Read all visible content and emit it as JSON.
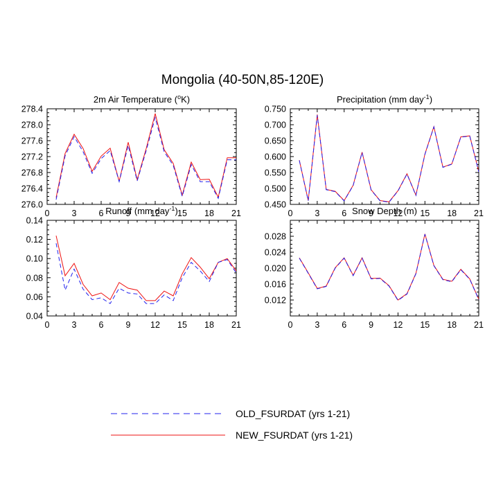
{
  "figure_title": "Mongolia (40-50N,85-120E)",
  "colors": {
    "old": "#2020ee",
    "new": "#ee1010",
    "axis": "#000000"
  },
  "legend": {
    "old_label": "OLD_FSURDAT (yrs 1-21)",
    "new_label": "NEW_FSURDAT (yrs 1-21)"
  },
  "chart_data": [
    {
      "type": "line",
      "title_main": "2m Air Temperature (",
      "title_sup": "o",
      "title_end": "K)",
      "x": [
        1,
        2,
        3,
        4,
        5,
        6,
        7,
        8,
        9,
        10,
        11,
        12,
        13,
        14,
        15,
        16,
        17,
        18,
        19,
        20,
        21
      ],
      "xlim": [
        0,
        21
      ],
      "xticks": [
        "0",
        "3",
        "6",
        "9",
        "12",
        "15",
        "18",
        "21"
      ],
      "ylim": [
        276.0,
        278.4
      ],
      "yticks": [
        "276.0",
        "276.4",
        "276.8",
        "277.2",
        "277.6",
        "278.0",
        "278.4"
      ],
      "series": [
        {
          "name": "OLD_FSURDAT (yrs 1-21)",
          "style": "dashed",
          "values": [
            276.12,
            277.22,
            277.7,
            277.32,
            276.78,
            277.15,
            277.35,
            276.57,
            277.48,
            276.59,
            277.35,
            278.18,
            277.32,
            276.98,
            276.2,
            277.0,
            276.57,
            276.57,
            276.15,
            277.12,
            277.12
          ]
        },
        {
          "name": "NEW_FSURDAT (yrs 1-21)",
          "style": "solid",
          "values": [
            276.17,
            277.28,
            277.76,
            277.4,
            276.83,
            277.21,
            277.41,
            276.58,
            277.56,
            276.62,
            277.4,
            278.28,
            277.37,
            277.03,
            276.23,
            277.06,
            276.62,
            276.63,
            276.18,
            277.17,
            277.17
          ]
        }
      ]
    },
    {
      "type": "line",
      "title_main": "Precipitation (mm day",
      "title_sup": "-1",
      "title_end": ")",
      "x": [
        1,
        2,
        3,
        4,
        5,
        6,
        7,
        8,
        9,
        10,
        11,
        12,
        13,
        14,
        15,
        16,
        17,
        18,
        19,
        20,
        21
      ],
      "xlim": [
        0,
        21
      ],
      "xticks": [
        "0",
        "3",
        "6",
        "9",
        "12",
        "15",
        "18",
        "21"
      ],
      "ylim": [
        0.45,
        0.75
      ],
      "yticks": [
        "0.450",
        "0.500",
        "0.550",
        "0.600",
        "0.650",
        "0.700",
        "0.750"
      ],
      "series": [
        {
          "name": "OLD_FSURDAT (yrs 1-21)",
          "style": "dashed",
          "values": [
            0.588,
            0.461,
            0.73,
            0.496,
            0.49,
            0.461,
            0.509,
            0.613,
            0.495,
            0.461,
            0.457,
            0.492,
            0.545,
            0.478,
            0.607,
            0.693,
            0.566,
            0.576,
            0.661,
            0.664,
            0.552
          ]
        },
        {
          "name": "NEW_FSURDAT (yrs 1-21)",
          "style": "solid",
          "values": [
            0.589,
            0.462,
            0.732,
            0.497,
            0.491,
            0.462,
            0.51,
            0.614,
            0.496,
            0.462,
            0.458,
            0.493,
            0.546,
            0.479,
            0.608,
            0.694,
            0.567,
            0.577,
            0.662,
            0.665,
            0.553
          ]
        }
      ]
    },
    {
      "type": "line",
      "title_main": "Runoff (mm day",
      "title_sup": "-1",
      "title_end": ")",
      "x": [
        1,
        2,
        3,
        4,
        5,
        6,
        7,
        8,
        9,
        10,
        11,
        12,
        13,
        14,
        15,
        16,
        17,
        18,
        19,
        20,
        21
      ],
      "xlim": [
        0,
        21
      ],
      "xticks": [
        "0",
        "3",
        "6",
        "9",
        "12",
        "15",
        "18",
        "21"
      ],
      "ylim": [
        0.04,
        0.14
      ],
      "yticks": [
        "0.04",
        "0.06",
        "0.08",
        "0.10",
        "0.12",
        "0.14"
      ],
      "series": [
        {
          "name": "OLD_FSURDAT (yrs 1-21)",
          "style": "dashed",
          "values": [
            0.116,
            0.067,
            0.089,
            0.068,
            0.057,
            0.059,
            0.053,
            0.069,
            0.064,
            0.063,
            0.053,
            0.053,
            0.062,
            0.056,
            0.08,
            0.096,
            0.087,
            0.076,
            0.096,
            0.099,
            0.085
          ]
        },
        {
          "name": "NEW_FSURDAT (yrs 1-21)",
          "style": "solid",
          "values": [
            0.124,
            0.082,
            0.095,
            0.073,
            0.061,
            0.064,
            0.057,
            0.075,
            0.069,
            0.067,
            0.056,
            0.056,
            0.066,
            0.061,
            0.084,
            0.101,
            0.091,
            0.079,
            0.096,
            0.1,
            0.087
          ]
        }
      ]
    },
    {
      "type": "line",
      "title_main": "Snow Depth (m)",
      "title_sup": "",
      "title_end": "",
      "x": [
        1,
        2,
        3,
        4,
        5,
        6,
        7,
        8,
        9,
        10,
        11,
        12,
        13,
        14,
        15,
        16,
        17,
        18,
        19,
        20,
        21
      ],
      "xlim": [
        0,
        21
      ],
      "xticks": [
        "0",
        "3",
        "6",
        "9",
        "12",
        "15",
        "18",
        "21"
      ],
      "ylim": [
        0.008,
        0.032
      ],
      "yticks": [
        "0.012",
        "0.016",
        "0.020",
        "0.024",
        "0.028"
      ],
      "series": [
        {
          "name": "OLD_FSURDAT (yrs 1-21)",
          "style": "dashed",
          "values": [
            0.0225,
            0.0187,
            0.0148,
            0.0154,
            0.02,
            0.0225,
            0.0181,
            0.0225,
            0.0173,
            0.0174,
            0.0155,
            0.0119,
            0.0135,
            0.0186,
            0.0285,
            0.0206,
            0.0171,
            0.0166,
            0.0196,
            0.0172,
            0.0121
          ]
        },
        {
          "name": "NEW_FSURDAT (yrs 1-21)",
          "style": "solid",
          "values": [
            0.0226,
            0.0188,
            0.0149,
            0.0155,
            0.0201,
            0.0226,
            0.0182,
            0.0226,
            0.0174,
            0.0175,
            0.0156,
            0.012,
            0.0136,
            0.0187,
            0.0286,
            0.0207,
            0.0172,
            0.0167,
            0.0197,
            0.0173,
            0.0122
          ]
        }
      ]
    }
  ]
}
